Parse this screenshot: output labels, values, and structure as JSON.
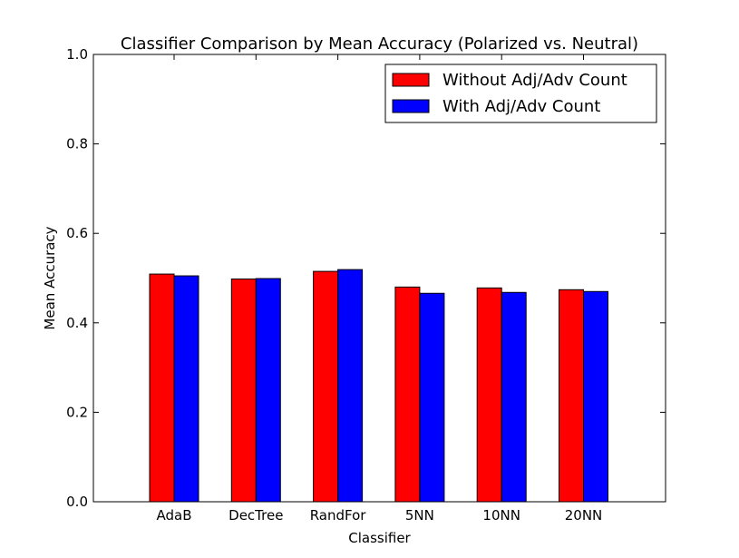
{
  "chart_data": {
    "type": "bar",
    "title": "Classifier Comparison by Mean Accuracy (Polarized vs. Neutral)",
    "xlabel": "Classifier",
    "ylabel": "Mean Accuracy",
    "ylim": [
      0.0,
      1.0
    ],
    "yticks": [
      "0.0",
      "0.2",
      "0.4",
      "0.6",
      "0.8",
      "1.0"
    ],
    "categories": [
      "AdaB",
      "DecTree",
      "RandFor",
      "5NN",
      "10NN",
      "20NN"
    ],
    "series": [
      {
        "name": "Without Adj/Adv Count",
        "color": "#ff0000",
        "values": [
          0.509,
          0.498,
          0.515,
          0.48,
          0.478,
          0.474
        ]
      },
      {
        "name": "With Adj/Adv Count",
        "color": "#0000ff",
        "values": [
          0.505,
          0.499,
          0.519,
          0.466,
          0.468,
          0.47
        ]
      }
    ],
    "grid": false,
    "legend_position": "top-right"
  }
}
